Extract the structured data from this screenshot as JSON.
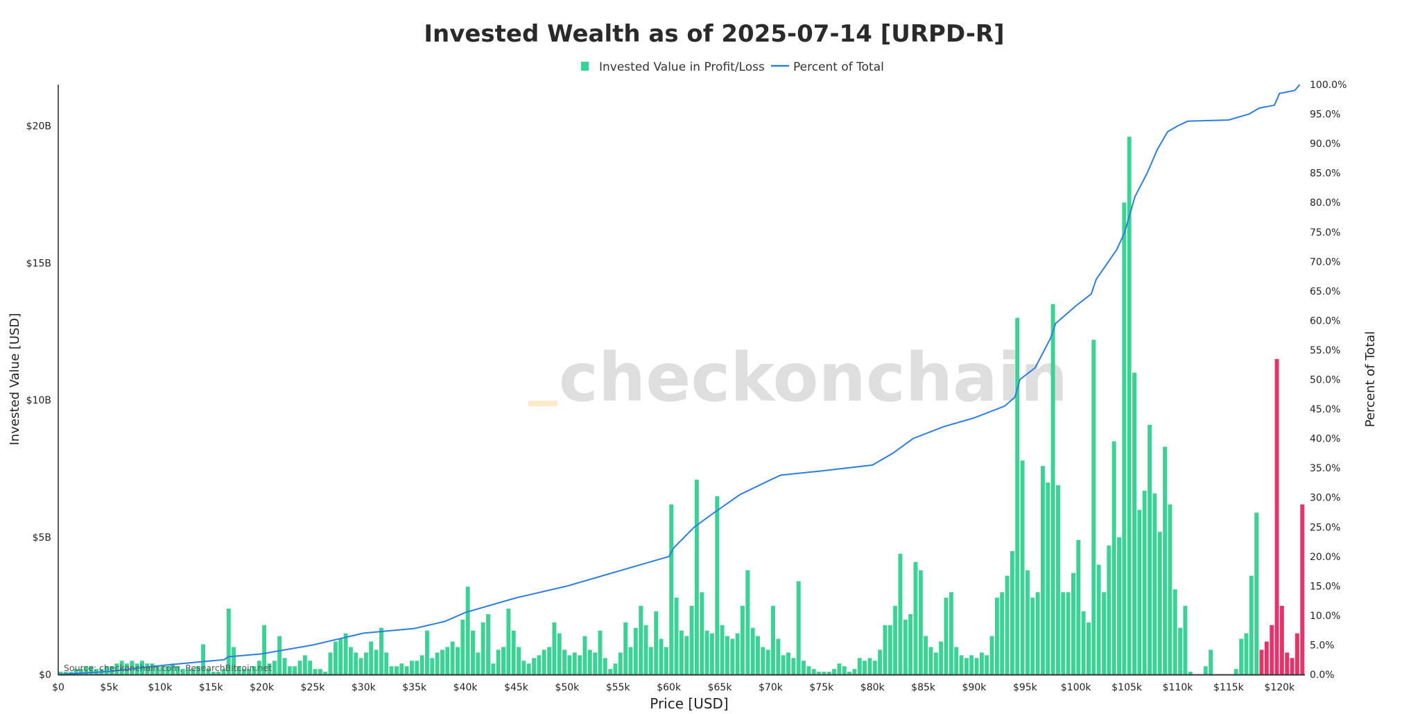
{
  "chart_data": {
    "type": "bar",
    "title": "Invested Wealth as of 2025-07-14 [URPD-R]",
    "xlabel": "Price [USD]",
    "ylabel": "Invested Value [USD]",
    "y2label": "Percent of Total",
    "source": "Source: checkonchain.com, ResearchBitcoin.net",
    "watermark": "_checkonchain",
    "legend_position": "top-center",
    "legend": [
      {
        "name": "Invested Value in Profit/Loss",
        "type": "bar"
      },
      {
        "name": "Percent of Total",
        "type": "line"
      }
    ],
    "xlim": [
      0,
      122500
    ],
    "ylim_billions": [
      0,
      21.5
    ],
    "y2lim": [
      0,
      100
    ],
    "x_ticks": [
      {
        "value": 0,
        "label": "$0"
      },
      {
        "value": 5000,
        "label": "$5k"
      },
      {
        "value": 10000,
        "label": "$10k"
      },
      {
        "value": 15000,
        "label": "$15k"
      },
      {
        "value": 20000,
        "label": "$20k"
      },
      {
        "value": 25000,
        "label": "$25k"
      },
      {
        "value": 30000,
        "label": "$30k"
      },
      {
        "value": 35000,
        "label": "$35k"
      },
      {
        "value": 40000,
        "label": "$40k"
      },
      {
        "value": 45000,
        "label": "$45k"
      },
      {
        "value": 50000,
        "label": "$50k"
      },
      {
        "value": 55000,
        "label": "$55k"
      },
      {
        "value": 60000,
        "label": "$60k"
      },
      {
        "value": 65000,
        "label": "$65k"
      },
      {
        "value": 70000,
        "label": "$70k"
      },
      {
        "value": 75000,
        "label": "$75k"
      },
      {
        "value": 80000,
        "label": "$80k"
      },
      {
        "value": 85000,
        "label": "$85k"
      },
      {
        "value": 90000,
        "label": "$90k"
      },
      {
        "value": 95000,
        "label": "$95k"
      },
      {
        "value": 100000,
        "label": "$100k"
      },
      {
        "value": 105000,
        "label": "$105k"
      },
      {
        "value": 110000,
        "label": "$110k"
      },
      {
        "value": 115000,
        "label": "$115k"
      },
      {
        "value": 120000,
        "label": "$120k"
      }
    ],
    "y_ticks": [
      {
        "value": 0,
        "label": "$0"
      },
      {
        "value": 5,
        "label": "$5B"
      },
      {
        "value": 10,
        "label": "$10B"
      },
      {
        "value": 15,
        "label": "$15B"
      },
      {
        "value": 20,
        "label": "$20B"
      }
    ],
    "y2_ticks": [
      {
        "value": 0,
        "label": "0.0%"
      },
      {
        "value": 5,
        "label": "5.0%"
      },
      {
        "value": 10,
        "label": "10.0%"
      },
      {
        "value": 15,
        "label": "15.0%"
      },
      {
        "value": 20,
        "label": "20.0%"
      },
      {
        "value": 25,
        "label": "25.0%"
      },
      {
        "value": 30,
        "label": "30.0%"
      },
      {
        "value": 35,
        "label": "35.0%"
      },
      {
        "value": 40,
        "label": "40.0%"
      },
      {
        "value": 45,
        "label": "45.0%"
      },
      {
        "value": 50,
        "label": "50.0%"
      },
      {
        "value": 55,
        "label": "55.0%"
      },
      {
        "value": 60,
        "label": "60.0%"
      },
      {
        "value": 65,
        "label": "65.0%"
      },
      {
        "value": 70,
        "label": "70.0%"
      },
      {
        "value": 75,
        "label": "75.0%"
      },
      {
        "value": 80,
        "label": "80.0%"
      },
      {
        "value": 85,
        "label": "85.0%"
      },
      {
        "value": 90,
        "label": "90.0%"
      },
      {
        "value": 95,
        "label": "95.0%"
      },
      {
        "value": 100,
        "label": "100.0%"
      }
    ],
    "bin_width_usd": 500,
    "loss_threshold_usd": 118000,
    "bars_billions": [
      0.1,
      0.1,
      0.1,
      0.2,
      0.2,
      0.3,
      0.3,
      0.2,
      0.2,
      0.3,
      0.3,
      0.4,
      0.5,
      0.4,
      0.5,
      0.4,
      0.5,
      0.4,
      0.4,
      0.3,
      0.3,
      0.3,
      0.4,
      0.3,
      0.2,
      0.2,
      0.2,
      0.3,
      1.1,
      0.2,
      0.1,
      0.1,
      0.2,
      2.4,
      1.0,
      0.3,
      0.2,
      0.2,
      0.3,
      0.5,
      1.8,
      0.4,
      0.5,
      1.4,
      0.6,
      0.3,
      0.3,
      0.5,
      0.7,
      0.5,
      0.2,
      0.2,
      0.1,
      0.8,
      1.2,
      1.3,
      1.5,
      1.0,
      0.8,
      0.6,
      0.8,
      1.2,
      0.9,
      1.7,
      0.8,
      0.3,
      0.3,
      0.4,
      0.3,
      0.5,
      0.5,
      0.7,
      1.6,
      0.6,
      0.8,
      0.9,
      1.0,
      1.2,
      1.0,
      2.0,
      3.2,
      1.6,
      0.8,
      1.9,
      2.2,
      0.4,
      0.9,
      1.0,
      2.4,
      1.6,
      1.0,
      0.5,
      0.4,
      0.6,
      0.7,
      0.9,
      1.0,
      1.9,
      1.5,
      0.9,
      0.7,
      0.8,
      0.7,
      1.4,
      0.9,
      0.8,
      1.6,
      0.6,
      0.2,
      0.4,
      0.8,
      1.9,
      1.0,
      1.7,
      2.5,
      1.8,
      1.0,
      2.3,
      1.3,
      1.0,
      6.2,
      2.8,
      1.6,
      1.4,
      2.5,
      7.1,
      3.0,
      1.6,
      1.5,
      6.5,
      1.8,
      1.4,
      1.3,
      1.5,
      2.5,
      3.8,
      1.7,
      1.4,
      1.0,
      0.9,
      2.5,
      1.3,
      0.7,
      0.8,
      0.6,
      3.4,
      0.5,
      0.3,
      0.2,
      0.1,
      0.1,
      0.1,
      0.2,
      0.4,
      0.3,
      0.1,
      0.2,
      0.6,
      0.5,
      0.6,
      0.5,
      0.9,
      1.8,
      1.8,
      2.5,
      4.4,
      2.0,
      2.2,
      4.1,
      3.8,
      1.4,
      1.0,
      0.8,
      1.2,
      2.8,
      3.0,
      1.0,
      0.7,
      0.6,
      0.7,
      0.6,
      0.8,
      0.7,
      1.4,
      2.8,
      3.0,
      3.6,
      4.5,
      13.0,
      7.8,
      3.8,
      2.8,
      3.0,
      7.6,
      7.0,
      13.5,
      6.9,
      3.0,
      3.0,
      3.7,
      4.9,
      2.3,
      1.9,
      12.2,
      4.0,
      3.0,
      4.7,
      8.5,
      5.0,
      17.2,
      19.6,
      11.0,
      6.0,
      6.7,
      9.1,
      6.6,
      5.2,
      8.3,
      6.2,
      3.1,
      1.7,
      2.5,
      0.1,
      0.0,
      0.0,
      0.3,
      0.9,
      0.0,
      0.0,
      0.0,
      0.0,
      0.2,
      1.3,
      1.5,
      3.6,
      5.9,
      0.9,
      1.2,
      1.8,
      11.5,
      2.5,
      0.8,
      0.6,
      1.5,
      6.2
    ],
    "percent_line": [
      [
        0,
        0
      ],
      [
        5000,
        0.5
      ],
      [
        10000,
        1.5
      ],
      [
        15000,
        2.3
      ],
      [
        16300,
        2.5
      ],
      [
        16700,
        3.0
      ],
      [
        20000,
        3.5
      ],
      [
        25000,
        5.0
      ],
      [
        28000,
        6.2
      ],
      [
        30000,
        7.0
      ],
      [
        35000,
        7.8
      ],
      [
        38000,
        9.0
      ],
      [
        40000,
        10.5
      ],
      [
        45000,
        13.0
      ],
      [
        50000,
        15.0
      ],
      [
        55000,
        17.5
      ],
      [
        60000,
        20.0
      ],
      [
        60500,
        21.5
      ],
      [
        62500,
        25.0
      ],
      [
        64500,
        27.5
      ],
      [
        67000,
        30.5
      ],
      [
        70000,
        33.0
      ],
      [
        71000,
        33.8
      ],
      [
        75000,
        34.5
      ],
      [
        80000,
        35.5
      ],
      [
        82000,
        37.5
      ],
      [
        84000,
        40.0
      ],
      [
        87000,
        42.0
      ],
      [
        90000,
        43.5
      ],
      [
        93000,
        45.5
      ],
      [
        94000,
        47.0
      ],
      [
        94500,
        50.0
      ],
      [
        96000,
        52.0
      ],
      [
        97500,
        57.0
      ],
      [
        98000,
        59.5
      ],
      [
        100000,
        62.5
      ],
      [
        101500,
        64.5
      ],
      [
        102000,
        67.0
      ],
      [
        104000,
        72.0
      ],
      [
        104800,
        75.0
      ],
      [
        105300,
        78.0
      ],
      [
        105800,
        81.0
      ],
      [
        107000,
        85.0
      ],
      [
        108000,
        89.0
      ],
      [
        109000,
        92.0
      ],
      [
        110000,
        93.0
      ],
      [
        111000,
        93.8
      ],
      [
        115000,
        94.0
      ],
      [
        117000,
        95.0
      ],
      [
        118000,
        96.0
      ],
      [
        119500,
        96.5
      ],
      [
        120000,
        98.5
      ],
      [
        121500,
        99.0
      ],
      [
        122000,
        100.0
      ]
    ],
    "colors": {
      "profit": "#3ad395",
      "loss": "#e8336a",
      "line": "#2a7de1"
    }
  }
}
